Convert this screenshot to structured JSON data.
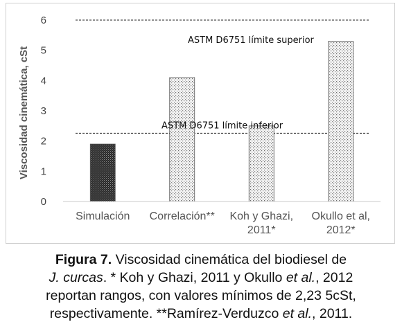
{
  "chart_data": {
    "type": "bar",
    "title": "",
    "ylabel": "Viscosidad cinemática, cSt",
    "xlabel": "",
    "ylim": [
      0,
      6
    ],
    "yticks": [
      0,
      1,
      2,
      3,
      4,
      5,
      6
    ],
    "categories": [
      [
        "Simulación"
      ],
      [
        "Correlación**"
      ],
      [
        "Koh y Ghazi,",
        "2011*"
      ],
      [
        "Okullo et al,",
        "2012*"
      ]
    ],
    "values": [
      1.9,
      4.1,
      2.5,
      5.3
    ],
    "bar_patterns": [
      "dense-dark",
      "dotted-light",
      "dotted-light",
      "dotted-light"
    ],
    "reference_lines": [
      {
        "label": "ASTM D6751 límite superior",
        "value": 6.0
      },
      {
        "label": "ASTM D6751 límite inferior",
        "value": 2.26
      }
    ],
    "grid": false,
    "legend": "none"
  },
  "caption": {
    "figure_label": "Figura  7.",
    "line1_rest": " Viscosidad cinemática del biodiesel de",
    "line2_species": "J. curcas",
    "line2_rest": ". * Koh y Ghazi, 2011 y Okullo ",
    "line2_etal": "et al.",
    "line2_end": ", 2012",
    "line3": "reportan rangos, con valores mínimos de 2,23  5cSt,",
    "line4_start": "respectivamente. **Ramírez-Verduzco ",
    "line4_etal": "et al.",
    "line4_end": ", 2011."
  }
}
